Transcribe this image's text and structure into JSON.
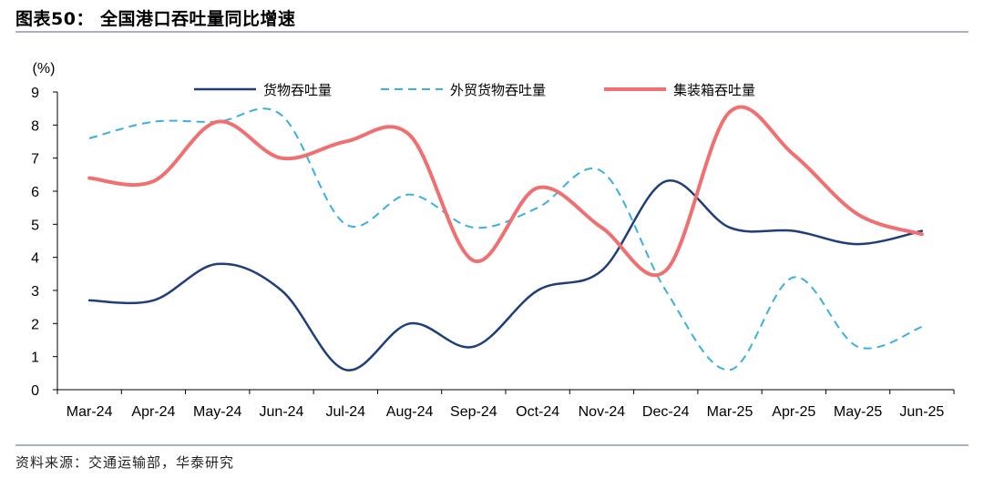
{
  "header": {
    "title": "图表50：  全国港口吞吐量同比增速"
  },
  "footer": {
    "source": "资料来源：交通运输部，华泰研究"
  },
  "chart_data": {
    "type": "line",
    "ylabel": "(%)",
    "ylim": [
      0,
      9
    ],
    "yticks": [
      0,
      1,
      2,
      3,
      4,
      5,
      6,
      7,
      8,
      9
    ],
    "categories": [
      "Mar-24",
      "Apr-24",
      "May-24",
      "Jun-24",
      "Jul-24",
      "Aug-24",
      "Sep-24",
      "Oct-24",
      "Nov-24",
      "Dec-24",
      "Mar-25",
      "Apr-25",
      "May-25",
      "Jun-25"
    ],
    "legend_position": "top",
    "grid": false,
    "series": [
      {
        "name": "货物吞吐量",
        "color": "#1f3e7a",
        "dash": "solid",
        "values": [
          2.7,
          2.7,
          3.8,
          3.0,
          0.6,
          2.0,
          1.3,
          3.0,
          3.6,
          6.3,
          4.9,
          4.8,
          4.4,
          4.8
        ]
      },
      {
        "name": "外贸货物吞吐量",
        "color": "#3ab0e2",
        "dash": "dashed",
        "values": [
          7.6,
          8.1,
          8.1,
          8.3,
          5.0,
          5.9,
          4.9,
          5.5,
          6.6,
          3.0,
          0.6,
          3.4,
          1.3,
          1.9
        ]
      },
      {
        "name": "集装箱吞吐量",
        "color": "#f07071",
        "dash": "solid",
        "values": [
          6.4,
          6.3,
          8.1,
          7.0,
          7.5,
          7.7,
          3.9,
          6.1,
          4.9,
          3.6,
          8.4,
          7.1,
          5.3,
          4.7
        ]
      }
    ]
  }
}
